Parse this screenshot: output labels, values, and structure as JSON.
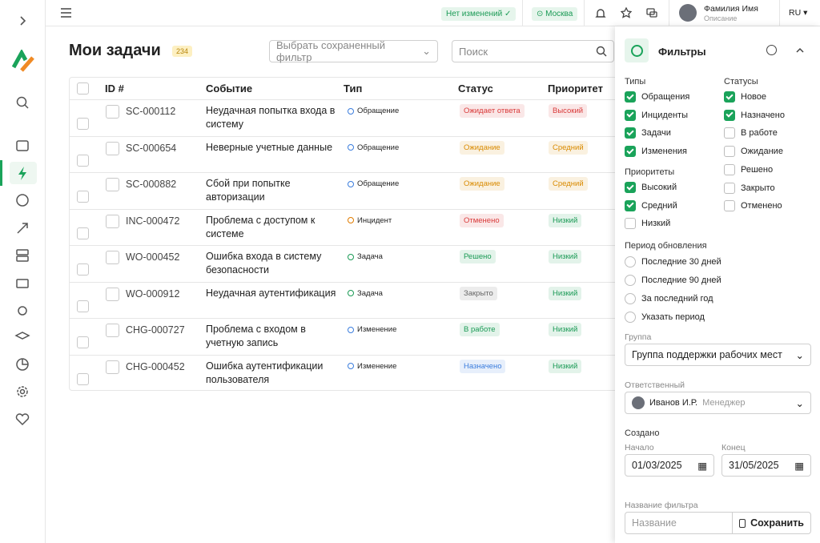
{
  "topbar": {
    "status": "Нет изменений",
    "location": "Москва",
    "user_name": "Фамилия Имя",
    "user_desc": "Описание",
    "lang": "RU"
  },
  "page": {
    "title": "Мои задачи",
    "count": 234,
    "saved_filter_placeholder": "Выбрать сохраненный фильтр",
    "search_placeholder": "Поиск"
  },
  "table": {
    "columns": [
      "ID #",
      "Событие",
      "Тип",
      "Статус",
      "Приоритет"
    ],
    "rows": [
      {
        "id": "SC-000112",
        "event": "Неудачная попытка входа в систему",
        "type": "Обращение",
        "type_color": "#3b7ddd",
        "status": "Ожидает ответа",
        "status_color": "#d93a3a",
        "priority": "Высокий",
        "priority_color": "#d93a3a"
      },
      {
        "id": "SC-000654",
        "event": "Неверные учетные данные",
        "type": "Обращение",
        "type_color": "#3b7ddd",
        "status": "Ожидание",
        "status_color": "#d98a00",
        "priority": "Средний",
        "priority_color": "#d98a00"
      },
      {
        "id": "SC-000882",
        "event": "Сбой при попытке авторизации",
        "type": "Обращение",
        "type_color": "#3b7ddd",
        "status": "Ожидание",
        "status_color": "#d98a00",
        "priority": "Средний",
        "priority_color": "#d98a00"
      },
      {
        "id": "INC-000472",
        "event": "Проблема с доступом к системе",
        "type": "Инцидент",
        "type_color": "#e07b00",
        "status": "Отменено",
        "status_color": "#d93a3a",
        "priority": "Низкий",
        "priority_color": "#1a9a55"
      },
      {
        "id": "WO-000452",
        "event": "Ошибка входа в систему безопасности",
        "type": "Задача",
        "type_color": "#1a9a55",
        "status": "Решено",
        "status_color": "#1a9a55",
        "priority": "Низкий",
        "priority_color": "#1a9a55"
      },
      {
        "id": "WO-000912",
        "event": "Неудачная аутентификация",
        "type": "Задача",
        "type_color": "#1a9a55",
        "status": "Закрыто",
        "status_color": "#666666",
        "priority": "Низкий",
        "priority_color": "#1a9a55"
      },
      {
        "id": "CHG-000727",
        "event": "Проблема с входом в учетную запись",
        "type": "Изменение",
        "type_color": "#3b7ddd",
        "status": "В работе",
        "status_color": "#1a9a55",
        "priority": "Низкий",
        "priority_color": "#1a9a55"
      },
      {
        "id": "CHG-000452",
        "event": "Ошибка аутентификации пользователя",
        "type": "Изменение",
        "type_color": "#3b7ddd",
        "status": "Назначено",
        "status_color": "#3b7ddd",
        "priority": "Низкий",
        "priority_color": "#1a9a55"
      }
    ]
  },
  "filters": {
    "title": "Фильтры",
    "types": {
      "label": "Типы",
      "items": [
        {
          "label": "Обращения",
          "checked": true
        },
        {
          "label": "Инциденты",
          "checked": true
        },
        {
          "label": "Задачи",
          "checked": true
        },
        {
          "label": "Изменения",
          "checked": true
        }
      ]
    },
    "statuses": {
      "label": "Статусы",
      "items": [
        {
          "label": "Новое",
          "checked": true
        },
        {
          "label": "Назначено",
          "checked": true
        },
        {
          "label": "В работе",
          "checked": false
        },
        {
          "label": "Ожидание",
          "checked": false
        },
        {
          "label": "Решено",
          "checked": false
        },
        {
          "label": "Закрыто",
          "checked": false
        },
        {
          "label": "Отменено",
          "checked": false
        }
      ]
    },
    "priorities": {
      "label": "Приоритеты",
      "items": [
        {
          "label": "Высокий",
          "checked": true
        },
        {
          "label": "Средний",
          "checked": true
        },
        {
          "label": "Низкий",
          "checked": false
        }
      ]
    },
    "period": {
      "label": "Период обновления",
      "items": [
        "Последние 30 дней",
        "Последние 90 дней",
        "За последний год",
        "Указать период"
      ]
    },
    "group": {
      "label": "Группа",
      "value": "Группа поддержки рабочих мест"
    },
    "responsible": {
      "label": "Ответственный",
      "name": "Иванов И.Р.",
      "role": "Менеджер"
    },
    "created": {
      "label": "Создано",
      "start_label": "Начало",
      "start": "01/03/2025",
      "end_label": "Конец",
      "end": "31/05/2025"
    },
    "filter_name": {
      "label": "Название фильтра",
      "placeholder": "Название",
      "save": "Сохранить"
    }
  }
}
